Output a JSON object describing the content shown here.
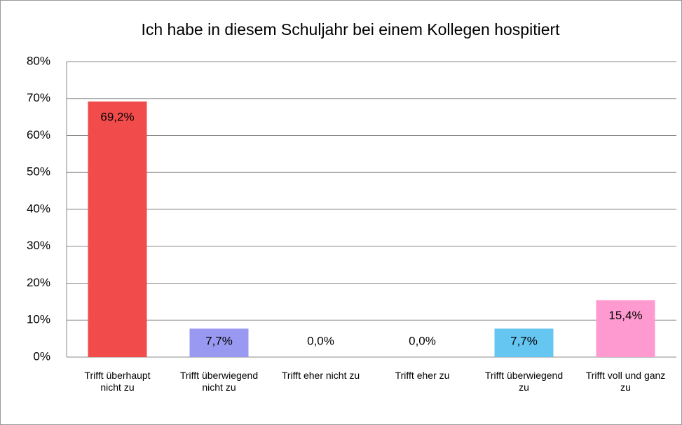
{
  "chart_data": {
    "type": "bar",
    "title": "Ich habe in diesem Schuljahr bei einem Kollegen hospitiert",
    "categories": [
      "Trifft überhaupt nicht zu",
      "Trifft überwiegend nicht zu",
      "Trifft eher nicht zu",
      "Trifft eher zu",
      "Trifft überwiegend zu",
      "Trifft voll und ganz zu"
    ],
    "values": [
      69.2,
      7.7,
      0,
      0,
      7.7,
      15.4
    ],
    "value_labels": [
      "69,2%",
      "7,7%",
      "0,0%",
      "0,0%",
      "7,7%",
      "15,4%"
    ],
    "colors": [
      "#f24b4b",
      "#9999f2",
      "#f2a64b",
      "#8fd16b",
      "#66c6f2",
      "#ff9ad0"
    ],
    "ylim": [
      0,
      80
    ],
    "yticks": [
      {
        "value": 0,
        "label": "0%"
      },
      {
        "value": 10,
        "label": "10%"
      },
      {
        "value": 20,
        "label": "20%"
      },
      {
        "value": 30,
        "label": "30%"
      },
      {
        "value": 40,
        "label": "40%"
      },
      {
        "value": 50,
        "label": "50%"
      },
      {
        "value": 60,
        "label": "60%"
      },
      {
        "value": 70,
        "label": "70%"
      },
      {
        "value": 80,
        "label": "80%"
      }
    ],
    "grid": true
  }
}
